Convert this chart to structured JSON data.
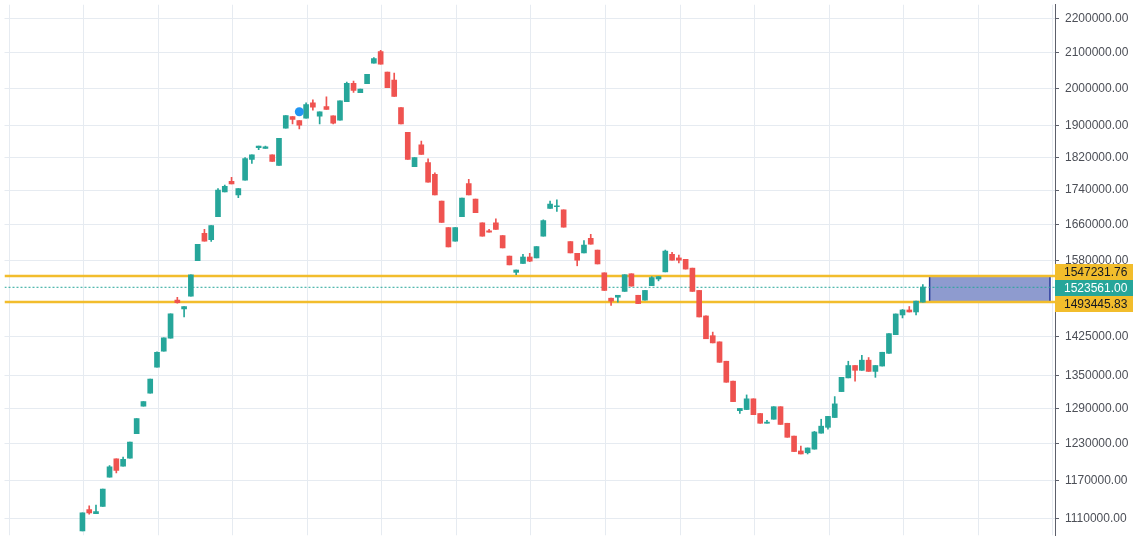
{
  "chart_data": {
    "type": "candlestick",
    "categories": [
      null,
      null,
      null,
      null,
      null,
      null,
      null,
      null,
      null,
      null,
      null,
      null,
      null,
      null,
      null,
      null,
      null,
      null,
      null,
      null,
      null,
      null,
      null,
      null,
      null,
      null,
      null,
      null,
      null,
      null,
      null,
      null,
      null,
      null,
      null,
      null,
      null,
      null,
      null,
      null,
      null,
      null,
      null,
      null,
      null,
      null,
      null,
      null,
      null,
      null,
      null,
      null,
      null,
      null,
      null,
      null,
      null,
      null,
      null,
      null,
      null,
      null,
      null,
      null,
      null,
      null,
      null,
      null,
      null,
      null,
      null,
      null,
      null,
      null,
      null,
      null,
      null,
      null,
      null,
      null,
      null,
      null,
      null,
      null,
      null,
      null,
      null,
      null,
      null,
      null,
      null,
      null,
      null,
      null,
      null,
      null,
      null,
      null,
      null,
      null,
      null,
      null,
      null,
      null,
      null,
      null,
      null,
      null,
      null,
      null,
      null,
      null,
      null,
      null,
      null,
      null,
      null,
      null,
      null,
      null,
      null,
      null,
      null,
      null,
      null,
      null,
      null,
      null,
      null,
      null,
      null,
      null,
      null,
      null,
      null,
      null,
      null,
      null,
      null,
      null,
      null,
      null,
      null,
      null,
      null,
      null,
      null,
      null,
      null,
      null,
      null,
      null,
      null,
      null,
      null
    ],
    "ohlc": [
      null,
      null,
      null,
      null,
      null,
      null,
      null,
      null,
      null,
      null,
      null,
      [
        1092000,
        1119000,
        1092000,
        1119000
      ],
      [
        1124000,
        1130000,
        1117000,
        1119000
      ],
      [
        1118000,
        1131000,
        1118000,
        1121000
      ],
      [
        1129000,
        1156000,
        1129000,
        1156000
      ],
      [
        1175000,
        1194000,
        1175000,
        1192000
      ],
      [
        1205000,
        1205000,
        1182000,
        1186000
      ],
      [
        1193000,
        1208000,
        1193000,
        1204000
      ],
      [
        1206000,
        1233000,
        1206000,
        1233000
      ],
      [
        1247000,
        1273000,
        1247000,
        1273000
      ],
      [
        1295000,
        1303000,
        1295000,
        1303000
      ],
      [
        1318000,
        1344000,
        1318000,
        1344000
      ],
      [
        1366000,
        1395000,
        1366000,
        1394000
      ],
      [
        1396000,
        1422000,
        1396000,
        1422000
      ],
      [
        1421000,
        1469000,
        1421000,
        1469000
      ],
      [
        1497000,
        1503000,
        1491000,
        1492000
      ],
      [
        1479000,
        1484000,
        1463000,
        1484000
      ],
      [
        1505000,
        1550000,
        1505000,
        1550000
      ],
      [
        1580000,
        1616000,
        1580000,
        1616000
      ],
      [
        1640000,
        1649000,
        1623000,
        1623000
      ],
      [
        1626000,
        1658000,
        1622000,
        1658000
      ],
      [
        1678000,
        1744000,
        1678000,
        1740000
      ],
      [
        1736000,
        1752000,
        1736000,
        1749000
      ],
      [
        1761000,
        1771000,
        1755000,
        1755000
      ],
      [
        1729000,
        1744000,
        1722000,
        1744000
      ],
      [
        1764000,
        1819000,
        1764000,
        1817000
      ],
      [
        1815000,
        1826000,
        1805000,
        1826000
      ],
      [
        1844000,
        1848000,
        1839000,
        1848000
      ],
      [
        1842000,
        1848000,
        1842000,
        1846000
      ],
      [
        1826000,
        1826000,
        1810000,
        1810000
      ],
      [
        1800000,
        1868000,
        1800000,
        1868000
      ],
      [
        1894000,
        1927000,
        1894000,
        1927000
      ],
      [
        1924000,
        1924000,
        1905000,
        1917000
      ],
      [
        1914000,
        1914000,
        1892000,
        1902000
      ],
      [
        1920000,
        1961000,
        1920000,
        1956000
      ],
      [
        1961000,
        1969000,
        1941000,
        1949000
      ],
      [
        1925000,
        1937000,
        1905000,
        1937000
      ],
      [
        1951000,
        1977000,
        1943000,
        1943000
      ],
      [
        1926000,
        1926000,
        1905000,
        1907000
      ],
      [
        1915000,
        1966000,
        1915000,
        1966000
      ],
      [
        1964000,
        2017000,
        1964000,
        2014000
      ],
      [
        2014000,
        2020000,
        1989000,
        1994000
      ],
      [
        1988000,
        1998000,
        1988000,
        1998000
      ],
      [
        2013000,
        2039000,
        2013000,
        2039000
      ],
      [
        2070000,
        2086000,
        2070000,
        2083000
      ],
      [
        2103000,
        2107000,
        2067000,
        2067000
      ],
      [
        2045000,
        2045000,
        2002000,
        2002000
      ],
      [
        2023000,
        2042000,
        1978000,
        1978000
      ],
      [
        1948000,
        1948000,
        1905000,
        1905000
      ],
      [
        1883000,
        1883000,
        1815000,
        1815000
      ],
      [
        1797000,
        1819000,
        1797000,
        1819000
      ],
      [
        1851000,
        1861000,
        1827000,
        1827000
      ],
      [
        1807000,
        1816000,
        1759000,
        1759000
      ],
      [
        1778000,
        1782000,
        1729000,
        1729000
      ],
      [
        1714000,
        1714000,
        1665000,
        1665000
      ],
      [
        1653000,
        1653000,
        1610000,
        1610000
      ],
      [
        1623000,
        1653000,
        1623000,
        1653000
      ],
      [
        1678000,
        1721000,
        1678000,
        1721000
      ],
      [
        1756000,
        1766000,
        1729000,
        1729000
      ],
      [
        1719000,
        1719000,
        1687000,
        1687000
      ],
      [
        1664000,
        1664000,
        1634000,
        1634000
      ],
      [
        1646000,
        1649000,
        1643000,
        1643000
      ],
      [
        1664000,
        1673000,
        1649000,
        1649000
      ],
      [
        1635000,
        1635000,
        1608000,
        1608000
      ],
      [
        1590000,
        1590000,
        1571000,
        1571000
      ],
      [
        1555000,
        1560000,
        1550000,
        1560000
      ],
      [
        1574000,
        1594000,
        1574000,
        1588000
      ],
      [
        1588000,
        1596000,
        1578000,
        1579000
      ],
      [
        1586000,
        1611000,
        1586000,
        1611000
      ],
      [
        1634000,
        1671000,
        1634000,
        1669000
      ],
      [
        1697000,
        1714000,
        1697000,
        1707000
      ],
      [
        1701000,
        1717000,
        1690000,
        1703000
      ],
      [
        1694000,
        1694000,
        1654000,
        1654000
      ],
      [
        1622000,
        1622000,
        1597000,
        1597000
      ],
      [
        1596000,
        1596000,
        1569000,
        1581000
      ],
      [
        1597000,
        1624000,
        1597000,
        1614000
      ],
      [
        1629000,
        1638000,
        1616000,
        1616000
      ],
      [
        1603000,
        1603000,
        1573000,
        1573000
      ],
      [
        1554000,
        1554000,
        1517000,
        1517000
      ],
      [
        1501000,
        1501000,
        1486000,
        1495000
      ],
      [
        1503000,
        1507000,
        1493000,
        1507000
      ],
      [
        1515000,
        1550000,
        1515000,
        1550000
      ],
      [
        1552000,
        1552000,
        1526000,
        1526000
      ],
      [
        1507000,
        1507000,
        1490000,
        1490000
      ],
      [
        1497000,
        1517000,
        1497000,
        1517000
      ],
      [
        1527000,
        1546000,
        1527000,
        1544000
      ],
      [
        1541000,
        1546000,
        1537000,
        1546000
      ],
      [
        1556000,
        1603000,
        1556000,
        1601000
      ],
      [
        1594000,
        1598000,
        1581000,
        1581000
      ],
      [
        1586000,
        1592000,
        1575000,
        1581000
      ],
      [
        1583000,
        1583000,
        1562000,
        1562000
      ],
      [
        1564000,
        1564000,
        1515000,
        1515000
      ],
      [
        1517000,
        1517000,
        1463000,
        1463000
      ],
      [
        1465000,
        1465000,
        1420000,
        1420000
      ],
      [
        1426000,
        1433000,
        1412000,
        1412000
      ],
      [
        1414000,
        1414000,
        1375000,
        1375000
      ],
      [
        1377000,
        1377000,
        1338000,
        1338000
      ],
      [
        1340000,
        1340000,
        1303000,
        1303000
      ],
      [
        1287000,
        1291000,
        1282000,
        1291000
      ],
      [
        1289000,
        1315000,
        1289000,
        1308000
      ],
      [
        1308000,
        1308000,
        1280000,
        1280000
      ],
      [
        1282000,
        1282000,
        1265000,
        1265000
      ],
      [
        1265000,
        1270000,
        1265000,
        1267000
      ],
      [
        1272000,
        1294000,
        1272000,
        1294000
      ],
      [
        1294000,
        1294000,
        1263000,
        1263000
      ],
      [
        1265000,
        1265000,
        1241000,
        1241000
      ],
      [
        1243000,
        1243000,
        1217000,
        1217000
      ],
      [
        1218000,
        1226000,
        1213000,
        1213000
      ],
      [
        1215000,
        1223000,
        1213000,
        1223000
      ],
      [
        1221000,
        1251000,
        1221000,
        1250000
      ],
      [
        1248000,
        1272000,
        1248000,
        1260000
      ],
      [
        1258000,
        1277000,
        1255000,
        1277000
      ],
      [
        1275000,
        1312000,
        1275000,
        1299000
      ],
      [
        1321000,
        1347000,
        1321000,
        1347000
      ],
      [
        1346000,
        1377000,
        1346000,
        1369000
      ],
      [
        1369000,
        1369000,
        1340000,
        1360000
      ],
      [
        1360000,
        1388000,
        1360000,
        1379000
      ],
      [
        1379000,
        1384000,
        1358000,
        1358000
      ],
      [
        1358000,
        1369000,
        1347000,
        1369000
      ],
      [
        1368000,
        1394000,
        1368000,
        1394000
      ],
      [
        1392000,
        1430000,
        1392000,
        1430000
      ],
      [
        1428000,
        1469000,
        1428000,
        1469000
      ],
      [
        1467000,
        1478000,
        1461000,
        1477000
      ],
      [
        1477000,
        1484000,
        1473000,
        1473000
      ],
      [
        1473000,
        1495000,
        1467000,
        1495000
      ],
      [
        1493000,
        1529000,
        1493000,
        1524000
      ],
      null,
      null,
      null,
      null,
      null,
      null,
      null,
      null,
      null,
      null,
      null,
      null,
      null,
      null,
      null,
      null,
      null,
      null,
      null
    ],
    "colors": [
      null,
      null,
      null,
      null,
      null,
      null,
      null,
      null,
      null,
      null,
      null,
      "#26a69a",
      "#ef5350",
      "#26a69a",
      "#26a69a",
      "#26a69a",
      "#ef5350",
      "#26a69a",
      "#26a69a",
      "#26a69a",
      "#26a69a",
      "#26a69a",
      "#26a69a",
      "#26a69a",
      "#26a69a",
      "#ef5350",
      "#26a69a",
      "#26a69a",
      "#26a69a",
      "#ef5350",
      "#26a69a",
      "#26a69a",
      "#26a69a",
      "#ef5350",
      "#26a69a",
      "#26a69a",
      "#26a69a",
      "#26a69a",
      "#26a69a",
      "#ef5350",
      "#26a69a",
      "#26a69a",
      "#ef5350",
      "#ef5350",
      "#26a69a",
      "#ef5350",
      "#26a69a",
      "#ef5350",
      "#ef5350",
      "#26a69a",
      "#26a69a",
      "#ef5350",
      "#26a69a",
      "#26a69a",
      "#26a69a",
      "#ef5350",
      "#ef5350",
      "#ef5350",
      "#ef5350",
      "#ef5350",
      "#26a69a",
      "#ef5350",
      "#ef5350",
      "#ef5350",
      "#ef5350",
      "#ef5350",
      "#26a69a",
      "#26a69a",
      "#ef5350",
      "#ef5350",
      "#ef5350",
      "#ef5350",
      "#ef5350",
      "#ef5350",
      "#ef5350",
      "#26a69a",
      "#26a69a",
      "#ef5350",
      "#26a69a",
      "#26a69a",
      "#26a69a",
      "#26a69a",
      "#ef5350",
      "#ef5350",
      "#ef5350",
      "#26a69a",
      "#ef5350",
      "#ef5350",
      "#ef5350",
      "#ef5350",
      "#26a69a",
      "#26a69a",
      "#ef5350",
      "#ef5350",
      "#26a69a",
      "#26a69a",
      "#26a69a",
      "#26a69a",
      "#ef5350",
      "#ef5350",
      "#ef5350",
      "#ef5350",
      "#ef5350",
      "#ef5350",
      "#ef5350",
      "#ef5350",
      "#ef5350",
      "#ef5350",
      "#26a69a",
      "#26a69a",
      "#ef5350",
      "#ef5350",
      "#26a69a",
      "#26a69a",
      "#ef5350",
      "#ef5350",
      "#ef5350",
      "#ef5350",
      "#26a69a",
      "#26a69a",
      "#26a69a",
      "#26a69a",
      "#26a69a",
      "#26a69a",
      "#26a69a",
      "#ef5350",
      "#26a69a",
      "#ef5350",
      "#26a69a",
      "#26a69a",
      "#26a69a",
      "#26a69a",
      "#26a69a",
      "#ef5350",
      "#26a69a",
      "#26a69a",
      null,
      null,
      null,
      null,
      null,
      null,
      null,
      null,
      null,
      null,
      null,
      null,
      null,
      null,
      null,
      null,
      null,
      null,
      null
    ],
    "series": [
      {
        "type": "scatter",
        "color": "#2196f3",
        "values": [
          null,
          null,
          null,
          null,
          null,
          null,
          null,
          null,
          null,
          null,
          null,
          null,
          null,
          null,
          null,
          null,
          null,
          null,
          null,
          null,
          null,
          null,
          null,
          null,
          null,
          null,
          null,
          null,
          null,
          null,
          null,
          null,
          null,
          null,
          null,
          null,
          null,
          null,
          null,
          null,
          null,
          null,
          null,
          1937000,
          null,
          null,
          null,
          null,
          null,
          null,
          null,
          null,
          null,
          null,
          null,
          null,
          null,
          null,
          null,
          null,
          null,
          null,
          null,
          null,
          null,
          null,
          null,
          null,
          null,
          null,
          null,
          null,
          null,
          null,
          null,
          null,
          null,
          null,
          null,
          null,
          null,
          null,
          null,
          null,
          null,
          null,
          null,
          null,
          null,
          null,
          null,
          null,
          null,
          null,
          null,
          null,
          null,
          null,
          null,
          null,
          null,
          null,
          null,
          null,
          null,
          null,
          null,
          null,
          null,
          null,
          null,
          null,
          null,
          null,
          null,
          null,
          null,
          null,
          null,
          null,
          null,
          null,
          null,
          null,
          null,
          null,
          null,
          null,
          null,
          null,
          null,
          null,
          null,
          null,
          null,
          null,
          null,
          null,
          null,
          null,
          null,
          null,
          null,
          null,
          null,
          null,
          null,
          null,
          null,
          null,
          null,
          null,
          null,
          null,
          null
        ]
      }
    ],
    "marker": "circle",
    "log": true,
    "ylim": [
      1085000,
      2243000
    ],
    "yticks": [
      {
        "value": 1110000,
        "label": "1110000.00"
      },
      {
        "value": 1170000,
        "label": "1170000.00"
      },
      {
        "value": 1230000,
        "label": "1230000.00"
      },
      {
        "value": 1290000,
        "label": "1290000.00"
      },
      {
        "value": 1350000,
        "label": "1350000.00"
      },
      {
        "value": 1425000,
        "label": "1425000.00"
      },
      {
        "value": 1580000,
        "label": "1580000.00"
      },
      {
        "value": 1660000,
        "label": "1660000.00"
      },
      {
        "value": 1740000,
        "label": "1740000.00"
      },
      {
        "value": 1820000,
        "label": "1820000.00"
      },
      {
        "value": 1900000,
        "label": "1900000.00"
      },
      {
        "value": 2000000,
        "label": "2000000.00"
      },
      {
        "value": 2100000,
        "label": "2100000.00"
      },
      {
        "value": 2200000,
        "label": "2200000.00"
      }
    ],
    "grid": true,
    "ref_lines": [
      {
        "axis": "y",
        "value": 1547231.76,
        "label": "1547231.76",
        "color": "#f2bd2c"
      },
      {
        "axis": "y",
        "value": 1523561.0,
        "label": "1523561.00",
        "color": "#26a69a",
        "line_style": "dotted"
      },
      {
        "axis": "y",
        "value": 1493445.83,
        "label": "1493445.83",
        "color": "#f2bd2c"
      }
    ],
    "bands": [
      {
        "axis": "y",
        "from": 1493445.83,
        "to": 1547231.76,
        "color": "#8e9bcf"
      }
    ]
  }
}
